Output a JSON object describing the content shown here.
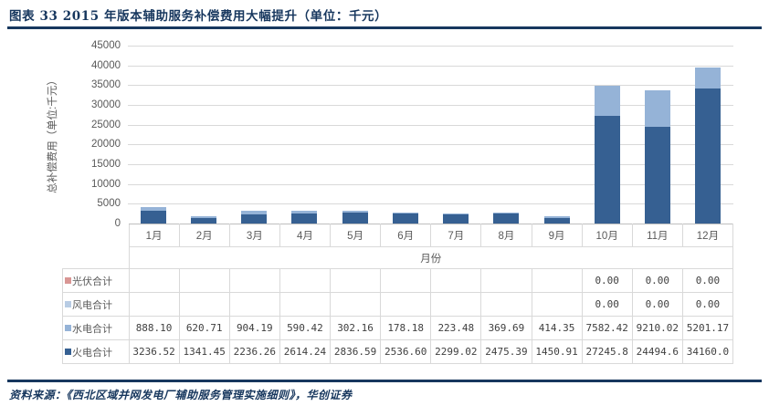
{
  "header": {
    "title": "图表 33  2015 年版本辅助服务补偿费用大幅提升（单位：千元）"
  },
  "chart_data": {
    "type": "bar",
    "stacked": true,
    "title": "",
    "xlabel": "月份",
    "ylabel": "总补偿费用（单位:千元）",
    "ylim": [
      0,
      45000
    ],
    "ytick_step": 5000,
    "yticks": [
      0,
      5000,
      10000,
      15000,
      20000,
      25000,
      30000,
      35000,
      40000,
      45000
    ],
    "grid": true,
    "legend_position": "data-table-left",
    "categories": [
      "1月",
      "2月",
      "3月",
      "4月",
      "5月",
      "6月",
      "7月",
      "8月",
      "9月",
      "10月",
      "11月",
      "12月"
    ],
    "series": [
      {
        "name": "火电合计",
        "color": "#366092",
        "values": [
          3236.52,
          1341.45,
          2236.26,
          2614.24,
          2836.59,
          2536.6,
          2299.02,
          2475.39,
          1450.91,
          27245.8,
          24494.6,
          34160.0
        ]
      },
      {
        "name": "水电合计",
        "color": "#95B3D7",
        "values": [
          888.1,
          620.71,
          904.19,
          590.42,
          302.16,
          178.18,
          223.48,
          369.69,
          414.35,
          7582.42,
          9210.02,
          5201.17
        ]
      },
      {
        "name": "风电合计",
        "color": "#B8CCE4",
        "values": [
          0,
          0,
          0,
          0,
          0,
          0,
          0,
          0,
          0,
          0,
          0,
          0
        ]
      },
      {
        "name": "光伏合计",
        "color": "#D99694",
        "values": [
          0,
          0,
          0,
          0,
          0,
          0,
          0,
          0,
          0,
          0,
          0,
          0
        ]
      }
    ]
  },
  "table": {
    "rows": [
      {
        "label": "光伏合计",
        "color": "#D99694",
        "cells": [
          "",
          "",
          "",
          "",
          "",
          "",
          "",
          "",
          "",
          "0.00",
          "0.00",
          "0.00"
        ]
      },
      {
        "label": "风电合计",
        "color": "#B8CCE4",
        "cells": [
          "",
          "",
          "",
          "",
          "",
          "",
          "",
          "",
          "",
          "0.00",
          "0.00",
          "0.00"
        ]
      },
      {
        "label": "水电合计",
        "color": "#95B3D7",
        "cells": [
          "888.10",
          "620.71",
          "904.19",
          "590.42",
          "302.16",
          "178.18",
          "223.48",
          "369.69",
          "414.35",
          "7582.42",
          "9210.02",
          "5201.17"
        ]
      },
      {
        "label": "火电合计",
        "color": "#366092",
        "cells": [
          "3236.52",
          "1341.45",
          "2236.26",
          "2614.24",
          "2836.59",
          "2536.60",
          "2299.02",
          "2475.39",
          "1450.91",
          "27245.8",
          "24494.6",
          "34160.0"
        ]
      }
    ]
  },
  "footer": {
    "source": "资料来源：《西北区域并网发电厂辅助服务管理实施细则》，华创证券"
  },
  "colors": {
    "accent": "#17375E",
    "gridline": "#D9D9D9",
    "axis_line": "#BFBFBF",
    "axis_text": "#595959"
  }
}
